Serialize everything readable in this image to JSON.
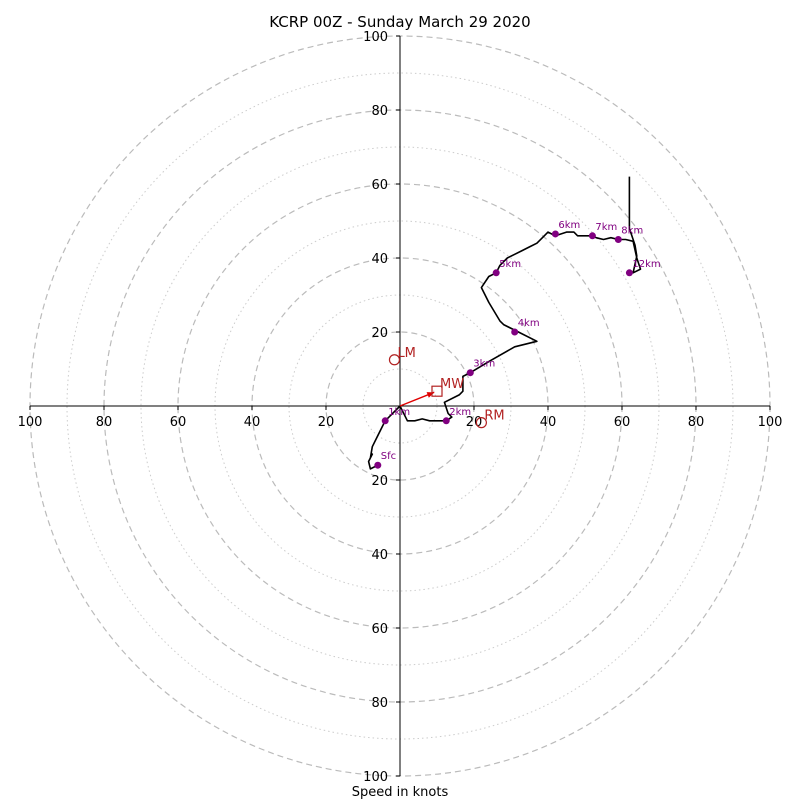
{
  "chart_data": {
    "type": "line",
    "title": "KCRP 00Z - Sunday March 29 2020",
    "xlabel": "Speed in knots",
    "xlim": [
      -100,
      100
    ],
    "ylim": [
      -100,
      100
    ],
    "tick_labels": [
      "100",
      "80",
      "60",
      "40",
      "20",
      "20",
      "40",
      "60",
      "80",
      "100"
    ],
    "tick_values": [
      -100,
      -80,
      -60,
      -40,
      -20,
      20,
      40,
      60,
      80,
      100
    ],
    "rings_major": [
      20,
      40,
      60,
      80,
      100
    ],
    "rings_minor": [
      10,
      30,
      50,
      70,
      90
    ],
    "hodograph": {
      "color": "#000000",
      "points": [
        [
          -6,
          -16
        ],
        [
          -8,
          -17
        ],
        [
          -8.5,
          -15
        ],
        [
          -7.5,
          -13
        ],
        [
          -8,
          -14
        ],
        [
          -7.5,
          -11
        ],
        [
          -6,
          -8
        ],
        [
          -4,
          -4
        ],
        [
          -2,
          -2
        ],
        [
          0,
          0
        ],
        [
          2,
          -4
        ],
        [
          4,
          -4
        ],
        [
          6,
          -3.5
        ],
        [
          8,
          -4
        ],
        [
          10,
          -4
        ],
        [
          12.5,
          -4
        ],
        [
          14,
          -3
        ],
        [
          13,
          -2
        ],
        [
          12,
          1
        ],
        [
          16,
          3
        ],
        [
          17,
          4
        ],
        [
          17,
          8
        ],
        [
          19,
          9
        ],
        [
          24,
          12
        ],
        [
          31,
          16
        ],
        [
          37,
          17.5
        ],
        [
          32,
          20
        ],
        [
          28,
          22
        ],
        [
          27,
          23
        ],
        [
          24,
          28
        ],
        [
          22,
          32
        ],
        [
          24,
          35
        ],
        [
          26,
          36
        ],
        [
          27,
          38
        ],
        [
          29,
          40
        ],
        [
          31,
          41
        ],
        [
          33,
          42
        ],
        [
          35,
          43
        ],
        [
          37,
          44
        ],
        [
          39,
          46
        ],
        [
          40,
          47
        ],
        [
          42,
          46
        ],
        [
          45,
          47
        ],
        [
          47,
          47
        ],
        [
          48,
          46
        ],
        [
          50,
          46
        ],
        [
          52,
          46
        ],
        [
          53,
          45.5
        ],
        [
          55,
          45
        ],
        [
          57,
          45.5
        ],
        [
          59,
          45
        ],
        [
          61,
          45
        ],
        [
          63,
          44.5
        ],
        [
          64,
          40
        ],
        [
          65,
          37
        ],
        [
          63,
          36
        ],
        [
          64,
          40.5
        ],
        [
          63.5,
          43.5
        ],
        [
          62,
          48
        ],
        [
          62,
          52
        ],
        [
          62,
          62
        ]
      ]
    },
    "height_markers": {
      "color": "#800080",
      "points": [
        {
          "label": "Sfc",
          "u": -6,
          "v": -16
        },
        {
          "label": "1km",
          "u": -4,
          "v": -4
        },
        {
          "label": "2km",
          "u": 12.5,
          "v": -4
        },
        {
          "label": "3km",
          "u": 19,
          "v": 9
        },
        {
          "label": "4km",
          "u": 31,
          "v": 20
        },
        {
          "label": "5km",
          "u": 26,
          "v": 36
        },
        {
          "label": "6km",
          "u": 42,
          "v": 46.5
        },
        {
          "label": "7km",
          "u": 52,
          "v": 46
        },
        {
          "label": "8km",
          "u": 59,
          "v": 45
        },
        {
          "label": "12km",
          "u": 62,
          "v": 36
        }
      ]
    },
    "storm_motion": {
      "color": "#b22222",
      "points": [
        {
          "label": "LM",
          "u": -1.5,
          "v": 12.5,
          "marker": "circle"
        },
        {
          "label": "MW",
          "u": 10,
          "v": 4,
          "marker": "square"
        },
        {
          "label": "RM",
          "u": 22,
          "v": -4.5,
          "marker": "circle"
        }
      ],
      "arrow_color": "#e00000",
      "arrow_to": [
        10,
        4
      ]
    }
  }
}
